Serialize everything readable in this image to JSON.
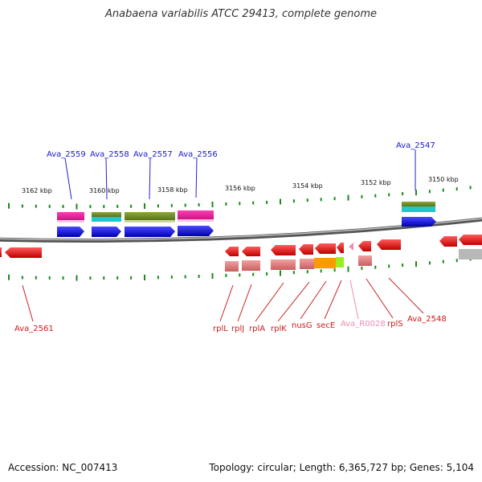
{
  "title": "Anabaena variabilis ATCC 29413, complete genome",
  "footer": {
    "accession": "Accession: NC_007413",
    "summary": "Topology: circular; Length: 6,365,727 bp; Genes: 5,104"
  },
  "scale_labels": [
    "3162 kbp",
    "3160 kbp",
    "3158 kbp",
    "3156 kbp",
    "3154 kbp",
    "3152 kbp",
    "3150 kbp"
  ],
  "genes_top": [
    "Ava_2559",
    "Ava_2558",
    "Ava_2557",
    "Ava_2556",
    "Ava_2547"
  ],
  "genes_bottom": [
    "Ava_2561",
    "rplL",
    "rplJ",
    "rplA",
    "rplK",
    "nusG",
    "secE",
    "Ava_R0028",
    "rplS",
    "Ava_2548"
  ],
  "colors": {
    "forward_cds": "#1010e0",
    "reverse_cds": "#f01010",
    "magenta_feature": "#e8189a",
    "olive_feature": "#6b8a1e",
    "teal_feature": "#20c8c8",
    "orange_feature": "#ff9900",
    "lime_feature": "#99ee22",
    "rna_pink": "#f08cb4",
    "scale_ticks": "#1a8a1a",
    "backbone": "#888888"
  }
}
